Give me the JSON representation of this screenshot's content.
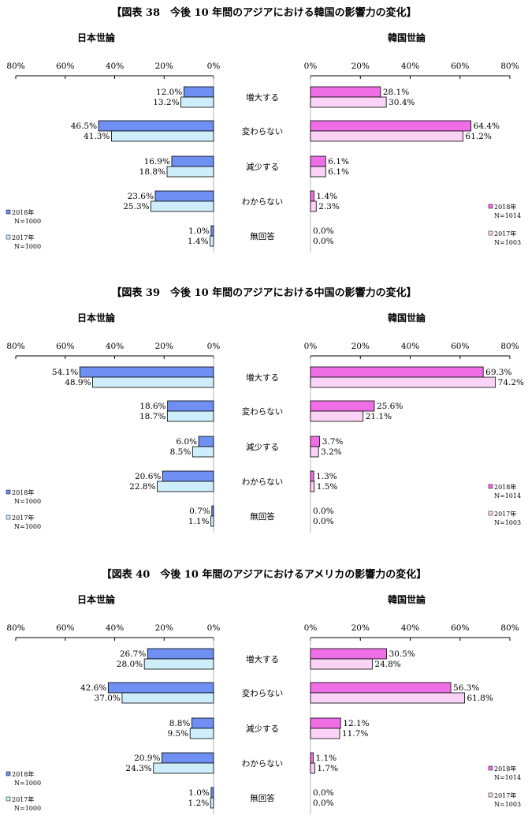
{
  "colors": {
    "japan_2018": "#6f8ff2",
    "japan_2017": "#cdeefa",
    "korea_2018": "#ef6ee6",
    "korea_2017": "#fbd3f7",
    "bar_stroke": "#000000",
    "axis": "#000000"
  },
  "legend": {
    "left": {
      "s2018_line1": "2018年",
      "s2018_line2": "N=1000",
      "s2017_line1": "2017年",
      "s2017_line2": "N=1000"
    },
    "right": {
      "s2018_line1": "2018年",
      "s2018_line2": "N=1014",
      "s2017_line1": "2017年",
      "s2017_line2": "N=1003"
    }
  },
  "left_header": "日本世論",
  "right_header": "韓国世論",
  "chart_data": [
    {
      "type": "bar",
      "title": "【図表 38　今後 10 年間のアジアにおける韓国の影響力の変化】",
      "categories": [
        "増大する",
        "変わらない",
        "減少する",
        "わからない",
        "無回答"
      ],
      "xlim": [
        0,
        80
      ],
      "ticks_left": [
        "80%",
        "60%",
        "40%",
        "20%",
        "0%"
      ],
      "ticks_right": [
        "0%",
        "20%",
        "40%",
        "60%",
        "80%"
      ],
      "japan": {
        "s2018": [
          12.0,
          46.5,
          16.9,
          23.6,
          1.0
        ],
        "s2017": [
          13.2,
          41.3,
          18.8,
          25.3,
          1.4
        ],
        "labels2018": [
          "12.0%",
          "46.5%",
          "16.9%",
          "23.6%",
          "1.0%"
        ],
        "labels2017": [
          "13.2%",
          "41.3%",
          "18.8%",
          "25.3%",
          "1.4%"
        ]
      },
      "korea": {
        "s2018": [
          28.1,
          64.4,
          6.1,
          1.4,
          0.0
        ],
        "s2017": [
          30.4,
          61.2,
          6.1,
          2.3,
          0.0
        ],
        "labels2018": [
          "28.1%",
          "64.4%",
          "6.1%",
          "1.4%",
          "0.0%"
        ],
        "labels2017": [
          "30.4%",
          "61.2%",
          "6.1%",
          "2.3%",
          "0.0%"
        ]
      }
    },
    {
      "type": "bar",
      "title": "【図表 39　今後 10 年間のアジアにおける中国の影響力の変化】",
      "categories": [
        "増大する",
        "変わらない",
        "減少する",
        "わからない",
        "無回答"
      ],
      "xlim": [
        0,
        80
      ],
      "ticks_left": [
        "80%",
        "60%",
        "40%",
        "20%",
        "0%"
      ],
      "ticks_right": [
        "0%",
        "20%",
        "40%",
        "60%",
        "80%"
      ],
      "japan": {
        "s2018": [
          54.1,
          18.6,
          6.0,
          20.6,
          0.7
        ],
        "s2017": [
          48.9,
          18.7,
          8.5,
          22.8,
          1.1
        ],
        "labels2018": [
          "54.1%",
          "18.6%",
          "6.0%",
          "20.6%",
          "0.7%"
        ],
        "labels2017": [
          "48.9%",
          "18.7%",
          "8.5%",
          "22.8%",
          "1.1%"
        ]
      },
      "korea": {
        "s2018": [
          69.3,
          25.6,
          3.7,
          1.3,
          0.0
        ],
        "s2017": [
          74.2,
          21.1,
          3.2,
          1.5,
          0.0
        ],
        "labels2018": [
          "69.3%",
          "25.6%",
          "3.7%",
          "1.3%",
          "0.0%"
        ],
        "labels2017": [
          "74.2%",
          "21.1%",
          "3.2%",
          "1.5%",
          "0.0%"
        ]
      }
    },
    {
      "type": "bar",
      "title": "【図表 40　今後 10 年間のアジアにおけるアメリカの影響力の変化】",
      "categories": [
        "増大する",
        "変わらない",
        "減少する",
        "わからない",
        "無回答"
      ],
      "xlim": [
        0,
        80
      ],
      "ticks_left": [
        "80%",
        "60%",
        "40%",
        "20%",
        "0%"
      ],
      "ticks_right": [
        "0%",
        "20%",
        "40%",
        "60%",
        "80%"
      ],
      "japan": {
        "s2018": [
          26.7,
          42.6,
          8.8,
          20.9,
          1.0
        ],
        "s2017": [
          28.0,
          37.0,
          9.5,
          24.3,
          1.2
        ],
        "labels2018": [
          "26.7%",
          "42.6%",
          "8.8%",
          "20.9%",
          "1.0%"
        ],
        "labels2017": [
          "28.0%",
          "37.0%",
          "9.5%",
          "24.3%",
          "1.2%"
        ]
      },
      "korea": {
        "s2018": [
          30.5,
          56.3,
          12.1,
          1.1,
          0.0
        ],
        "s2017": [
          24.8,
          61.8,
          11.7,
          1.7,
          0.0
        ],
        "labels2018": [
          "30.5%",
          "56.3%",
          "12.1%",
          "1.1%",
          "0.0%"
        ],
        "labels2017": [
          "24.8%",
          "61.8%",
          "11.7%",
          "1.7%",
          "0.0%"
        ]
      }
    }
  ]
}
